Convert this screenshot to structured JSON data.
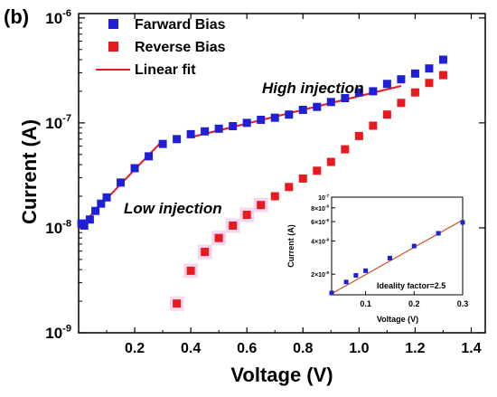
{
  "chart_data": [
    {
      "type": "scatter",
      "panel_label": "(b)",
      "xlabel": "Voltage (V)",
      "ylabel": "Current (A)",
      "xscale": "linear",
      "yscale": "log",
      "xlim": [
        0.0,
        1.45
      ],
      "ylim": [
        1e-09,
        1.1e-06
      ],
      "xticks": [
        0.2,
        0.4,
        0.6,
        0.8,
        1.0,
        1.2,
        1.4
      ],
      "xtick_labels": [
        "0.2",
        "0.4",
        "0.6",
        "0.8",
        "1.0",
        "1.2",
        "1.4"
      ],
      "yticks": [
        1e-09,
        1e-08,
        1e-07,
        1e-06
      ],
      "ytick_labels": [
        {
          "base": "10",
          "exp": "-9"
        },
        {
          "base": "10",
          "exp": "-8"
        },
        {
          "base": "10",
          "exp": "-7"
        },
        {
          "base": "10",
          "exp": "-6"
        }
      ],
      "grid": false,
      "legend_position": "top-left",
      "series": [
        {
          "name": "Farward Bias",
          "marker": "square",
          "color": "#1f1fd6",
          "x": [
            0.01,
            0.02,
            0.04,
            0.06,
            0.08,
            0.1,
            0.15,
            0.2,
            0.25,
            0.3,
            0.35,
            0.4,
            0.45,
            0.5,
            0.55,
            0.6,
            0.65,
            0.7,
            0.75,
            0.8,
            0.85,
            0.9,
            0.95,
            1.0,
            1.05,
            1.1,
            1.15,
            1.2,
            1.25,
            1.3
          ],
          "y": [
            1.1e-08,
            1.05e-08,
            1.2e-08,
            1.45e-08,
            1.7e-08,
            1.95e-08,
            2.7e-08,
            3.7e-08,
            4.8e-08,
            6.3e-08,
            7e-08,
            7.8e-08,
            8.3e-08,
            8.8e-08,
            9.3e-08,
            1e-07,
            1.07e-07,
            1.12e-07,
            1.2e-07,
            1.33e-07,
            1.42e-07,
            1.58e-07,
            1.72e-07,
            1.95e-07,
            2e-07,
            2.35e-07,
            2.6e-07,
            2.95e-07,
            3.3e-07,
            4e-07
          ]
        },
        {
          "name": "Reverse Bias",
          "marker": "square",
          "color": "#e8191f",
          "x": [
            0.35,
            0.4,
            0.45,
            0.5,
            0.55,
            0.6,
            0.65,
            0.7,
            0.75,
            0.8,
            0.85,
            0.9,
            0.95,
            1.0,
            1.05,
            1.1,
            1.15,
            1.2,
            1.25,
            1.3
          ],
          "y": [
            1.9e-09,
            3.9e-09,
            5.9e-09,
            8e-09,
            1.05e-08,
            1.33e-08,
            1.65e-08,
            2e-08,
            2.45e-08,
            2.95e-08,
            3.5e-08,
            4.25e-08,
            5.6e-08,
            7.5e-08,
            9.4e-08,
            1.2e-07,
            1.55e-07,
            1.95e-07,
            2.4e-07,
            2.85e-07
          ]
        },
        {
          "name": "Linear fit",
          "line": true,
          "color": "#e8191f",
          "segments": [
            {
              "x": [
                0.0,
                0.3
              ],
              "y": [
                1e-08,
                6.8e-08
              ]
            },
            {
              "x": [
                0.4,
                1.15
              ],
              "y": [
                7.3e-08,
                2.25e-07
              ]
            }
          ]
        }
      ],
      "annotations": [
        "High injection",
        "Low injection"
      ]
    },
    {
      "type": "scatter",
      "role": "inset",
      "xlabel": "Voltage (V)",
      "ylabel": "Current (A)",
      "xscale": "linear",
      "yscale": "log",
      "xlim": [
        0.03,
        0.3
      ],
      "ylim": [
        1.3e-08,
        1e-07
      ],
      "xticks": [
        0.1,
        0.2,
        0.3
      ],
      "xtick_labels": [
        "0.1",
        "0.2",
        "0.3"
      ],
      "yticks": [
        2e-08,
        4e-08,
        6e-08,
        8e-08,
        1e-07
      ],
      "ytick_labels": [
        {
          "base": "2×10",
          "exp": "-8"
        },
        {
          "base": "4×10",
          "exp": "-8"
        },
        {
          "base": "6×10",
          "exp": "-8"
        },
        {
          "base": "8×10",
          "exp": "-8"
        },
        {
          "base": "10",
          "exp": "-7"
        }
      ],
      "series": [
        {
          "name": "",
          "marker": "square",
          "color": "#1f1fd6",
          "x": [
            0.03,
            0.06,
            0.08,
            0.1,
            0.15,
            0.2,
            0.25,
            0.3
          ],
          "y": [
            1.35e-08,
            1.7e-08,
            1.95e-08,
            2.15e-08,
            2.8e-08,
            3.6e-08,
            4.7e-08,
            5.9e-08
          ]
        },
        {
          "name": "",
          "line": true,
          "color": "#c8502a",
          "x": [
            0.03,
            0.3
          ],
          "y": [
            1.33e-08,
            6.2e-08
          ]
        }
      ],
      "annotation": "Ideality factor=2.5"
    }
  ]
}
